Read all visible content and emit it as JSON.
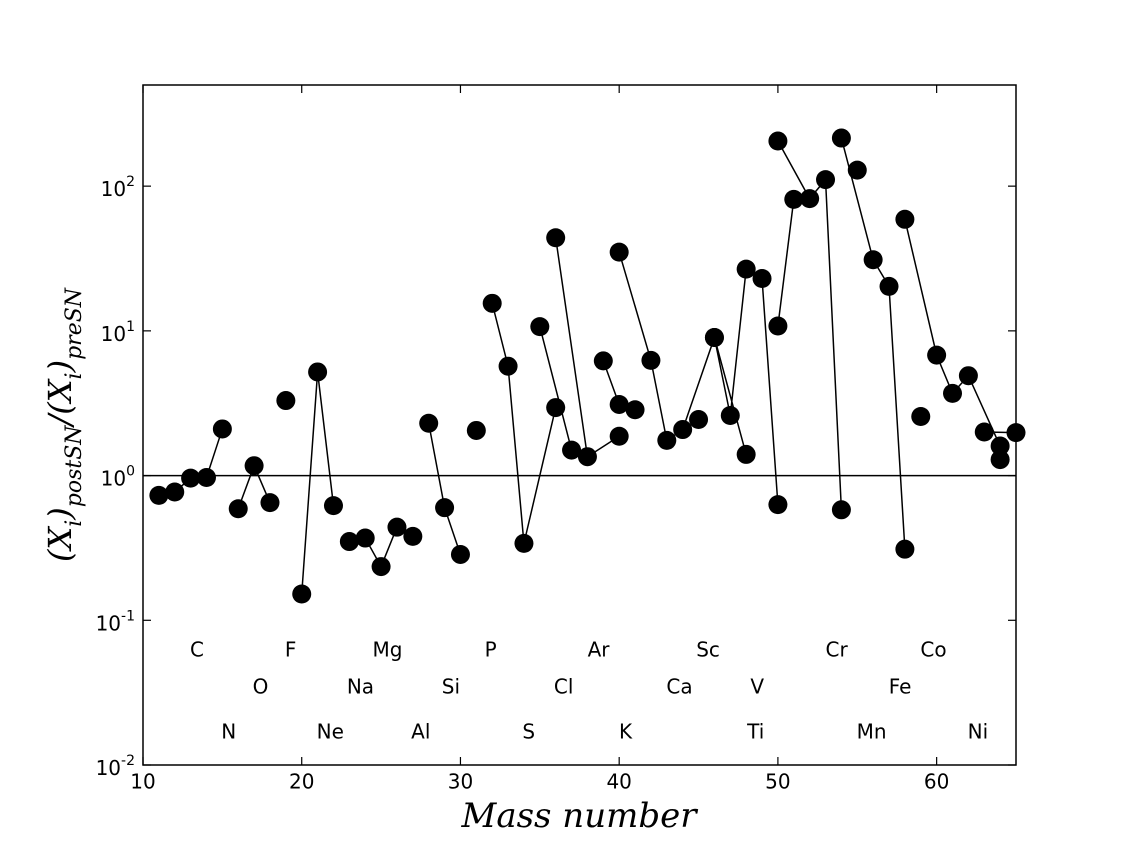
{
  "chart_data": {
    "type": "line",
    "xlabel": "Mass number",
    "ylabel": [
      "(X",
      "i",
      ")",
      "postSN",
      "/(X",
      "i",
      ")",
      "preSN"
    ],
    "xlim": [
      10,
      65
    ],
    "xticks": [
      10,
      20,
      30,
      40,
      50,
      60
    ],
    "ylim": [
      0.01,
      500
    ],
    "log_y": true,
    "yticks": [
      {
        "value": 0.01,
        "label": "10",
        "exponent": "-2"
      },
      {
        "value": 0.1,
        "label": "10",
        "exponent": "-1"
      },
      {
        "value": 1,
        "label": "10",
        "exponent": "0"
      },
      {
        "value": 10,
        "label": "10",
        "exponent": "1"
      },
      {
        "value": 100,
        "label": "10",
        "exponent": "2"
      }
    ],
    "hline": 1,
    "color": "#000000",
    "x": [
      11,
      12,
      13,
      14,
      15,
      null,
      16,
      17,
      18,
      null,
      19,
      null,
      20,
      21,
      22,
      null,
      23,
      24,
      25,
      26,
      27,
      null,
      28,
      29,
      30,
      null,
      31,
      null,
      32,
      33,
      34,
      36,
      null,
      35,
      37,
      null,
      36,
      38,
      40,
      null,
      39,
      40,
      41,
      null,
      40,
      42,
      43,
      44,
      46,
      48,
      null,
      45,
      null,
      46,
      47,
      48,
      49,
      50,
      null,
      50,
      51,
      null,
      50,
      52,
      53,
      54,
      null,
      55,
      null,
      54,
      56,
      57,
      58,
      null,
      59,
      null,
      58,
      60,
      61,
      62,
      64,
      null,
      63,
      65,
      null,
      64
    ],
    "values": [
      0.73,
      0.77,
      0.96,
      0.97,
      2.1,
      null,
      0.59,
      1.17,
      0.65,
      null,
      3.3,
      null,
      0.152,
      5.2,
      0.62,
      null,
      0.35,
      0.37,
      0.235,
      0.44,
      0.38,
      null,
      2.3,
      0.6,
      0.285,
      null,
      2.05,
      null,
      15.5,
      5.7,
      0.34,
      2.95,
      null,
      10.7,
      1.5,
      null,
      44,
      1.35,
      1.87,
      null,
      6.2,
      3.1,
      2.85,
      null,
      35,
      6.25,
      1.75,
      2.08,
      9.0,
      1.4,
      null,
      2.44,
      null,
      9.0,
      2.6,
      26.7,
      23,
      0.63,
      null,
      10.8,
      81,
      null,
      205,
      82,
      111,
      0.58,
      null,
      129,
      null,
      215,
      31,
      20.3,
      0.31,
      null,
      2.56,
      null,
      59,
      6.8,
      3.7,
      4.9,
      1.6,
      null,
      2.0,
      1.98,
      null,
      1.29
    ],
    "element_labels": [
      {
        "text": "C",
        "x": 13.4,
        "y": 0.0615
      },
      {
        "text": "F",
        "x": 19.3,
        "y": 0.0615
      },
      {
        "text": "Mg",
        "x": 25.4,
        "y": 0.0615
      },
      {
        "text": "P",
        "x": 31.9,
        "y": 0.0615
      },
      {
        "text": "Ar",
        "x": 38.7,
        "y": 0.0615
      },
      {
        "text": "Sc",
        "x": 45.6,
        "y": 0.0615
      },
      {
        "text": "Cr",
        "x": 53.7,
        "y": 0.0615
      },
      {
        "text": "Co",
        "x": 59.8,
        "y": 0.0615
      },
      {
        "text": "O",
        "x": 17.4,
        "y": 0.034
      },
      {
        "text": "Na",
        "x": 23.7,
        "y": 0.034
      },
      {
        "text": "Si",
        "x": 29.4,
        "y": 0.034
      },
      {
        "text": "Cl",
        "x": 36.5,
        "y": 0.034
      },
      {
        "text": "Ca",
        "x": 43.8,
        "y": 0.034
      },
      {
        "text": "V",
        "x": 48.7,
        "y": 0.034
      },
      {
        "text": "Fe",
        "x": 57.7,
        "y": 0.034
      },
      {
        "text": "N",
        "x": 15.4,
        "y": 0.0166
      },
      {
        "text": "Ne",
        "x": 21.8,
        "y": 0.0166
      },
      {
        "text": "Al",
        "x": 27.5,
        "y": 0.0166
      },
      {
        "text": "S",
        "x": 34.3,
        "y": 0.0166
      },
      {
        "text": "K",
        "x": 40.4,
        "y": 0.0166
      },
      {
        "text": "Ti",
        "x": 48.6,
        "y": 0.0166
      },
      {
        "text": "Mn",
        "x": 55.9,
        "y": 0.0166
      },
      {
        "text": "Ni",
        "x": 62.6,
        "y": 0.0166
      }
    ]
  }
}
